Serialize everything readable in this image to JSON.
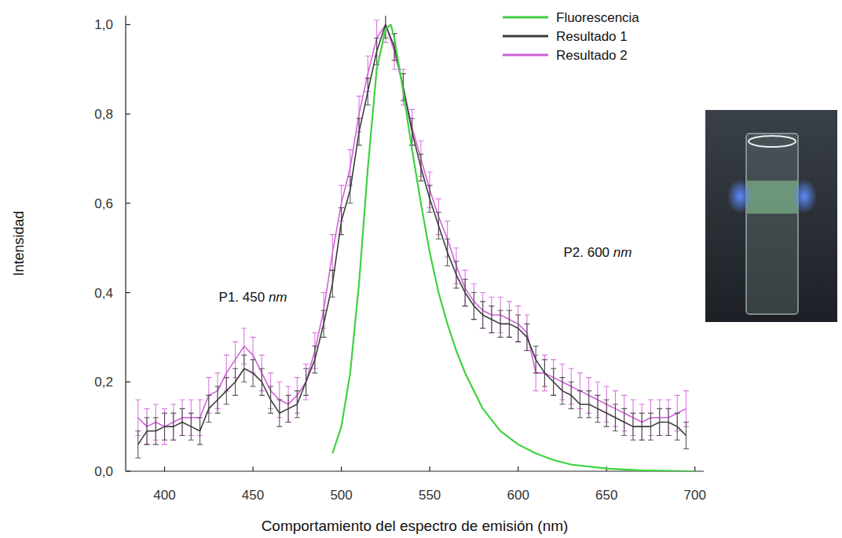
{
  "chart_data": {
    "type": "line",
    "x_label": "Comportamiento del espectro de emisión (nm)",
    "y_label": "Intensidad",
    "xlim": [
      378,
      705
    ],
    "xticks": [
      400,
      450,
      500,
      550,
      600,
      650,
      700
    ],
    "ylim": [
      0,
      1.02
    ],
    "yticks": [
      {
        "value": 0,
        "label": "0,0"
      },
      {
        "value": 0.2,
        "label": "0,2"
      },
      {
        "value": 0.4,
        "label": "0,4"
      },
      {
        "value": 0.6,
        "label": "0,6"
      },
      {
        "value": 0.8,
        "label": "0,8"
      },
      {
        "value": 1.0,
        "label": "1,0"
      }
    ],
    "grid": false,
    "legend": "top",
    "annotations": [
      {
        "text": "P1. 450 nm",
        "x": 450,
        "y": 0.38
      },
      {
        "text": "P2. 600 nm",
        "x": 645,
        "y": 0.48
      }
    ],
    "series": [
      {
        "name": "Fluorescencia",
        "color": "#3fd23f",
        "marker": "none",
        "line_style": "solid",
        "x": [
          495,
          500,
          505,
          510,
          515,
          520,
          525,
          528,
          530,
          535,
          540,
          545,
          550,
          555,
          560,
          565,
          570,
          575,
          580,
          590,
          600,
          610,
          620,
          630,
          650,
          670,
          700
        ],
        "values": [
          0.04,
          0.1,
          0.22,
          0.42,
          0.68,
          0.9,
          0.99,
          1.0,
          0.97,
          0.85,
          0.72,
          0.6,
          0.49,
          0.4,
          0.33,
          0.27,
          0.22,
          0.18,
          0.14,
          0.09,
          0.06,
          0.04,
          0.025,
          0.015,
          0.006,
          0.002,
          0.0
        ]
      },
      {
        "name": "Resultado 1",
        "color": "#3c3c3c",
        "marker": "none",
        "line_style": "solid",
        "x": [
          385,
          390,
          395,
          400,
          405,
          410,
          415,
          420,
          425,
          430,
          435,
          440,
          445,
          450,
          455,
          460,
          465,
          470,
          475,
          480,
          485,
          490,
          495,
          500,
          505,
          510,
          515,
          520,
          525,
          530,
          535,
          540,
          545,
          550,
          555,
          560,
          565,
          570,
          575,
          580,
          585,
          590,
          595,
          600,
          605,
          610,
          615,
          620,
          625,
          630,
          635,
          640,
          645,
          650,
          655,
          660,
          665,
          670,
          675,
          680,
          685,
          690,
          695
        ],
        "values": [
          0.06,
          0.09,
          0.09,
          0.1,
          0.1,
          0.11,
          0.1,
          0.09,
          0.14,
          0.16,
          0.18,
          0.2,
          0.23,
          0.22,
          0.2,
          0.16,
          0.13,
          0.14,
          0.15,
          0.2,
          0.25,
          0.33,
          0.42,
          0.56,
          0.63,
          0.76,
          0.85,
          0.94,
          1.0,
          0.95,
          0.86,
          0.76,
          0.68,
          0.61,
          0.55,
          0.49,
          0.44,
          0.4,
          0.37,
          0.35,
          0.34,
          0.33,
          0.33,
          0.32,
          0.3,
          0.25,
          0.22,
          0.2,
          0.18,
          0.17,
          0.15,
          0.15,
          0.14,
          0.13,
          0.12,
          0.11,
          0.1,
          0.1,
          0.1,
          0.11,
          0.11,
          0.1,
          0.08
        ],
        "errors": [
          0.03,
          0.03,
          0.03,
          0.03,
          0.03,
          0.03,
          0.03,
          0.03,
          0.03,
          0.03,
          0.03,
          0.03,
          0.03,
          0.03,
          0.03,
          0.03,
          0.03,
          0.03,
          0.03,
          0.03,
          0.03,
          0.03,
          0.03,
          0.03,
          0.03,
          0.03,
          0.03,
          0.03,
          0.03,
          0.03,
          0.03,
          0.03,
          0.03,
          0.03,
          0.03,
          0.03,
          0.03,
          0.03,
          0.03,
          0.03,
          0.03,
          0.03,
          0.03,
          0.03,
          0.03,
          0.03,
          0.03,
          0.03,
          0.03,
          0.03,
          0.03,
          0.03,
          0.03,
          0.03,
          0.03,
          0.03,
          0.03,
          0.03,
          0.03,
          0.03,
          0.03,
          0.03,
          0.03
        ]
      },
      {
        "name": "Resultado 2",
        "color": "#d062d8",
        "marker": "none",
        "line_style": "solid",
        "x": [
          385,
          390,
          395,
          400,
          405,
          410,
          415,
          420,
          425,
          430,
          435,
          440,
          445,
          450,
          455,
          460,
          465,
          470,
          475,
          480,
          485,
          490,
          495,
          500,
          505,
          510,
          515,
          520,
          525,
          530,
          535,
          540,
          545,
          550,
          555,
          560,
          565,
          570,
          575,
          580,
          585,
          590,
          595,
          600,
          605,
          610,
          615,
          620,
          625,
          630,
          635,
          640,
          645,
          650,
          655,
          660,
          665,
          670,
          675,
          680,
          685,
          690,
          695
        ],
        "values": [
          0.12,
          0.1,
          0.11,
          0.1,
          0.11,
          0.12,
          0.12,
          0.12,
          0.17,
          0.18,
          0.22,
          0.25,
          0.28,
          0.26,
          0.22,
          0.18,
          0.16,
          0.15,
          0.17,
          0.2,
          0.27,
          0.36,
          0.49,
          0.6,
          0.68,
          0.8,
          0.89,
          0.97,
          1.0,
          0.94,
          0.86,
          0.77,
          0.7,
          0.63,
          0.57,
          0.52,
          0.46,
          0.41,
          0.38,
          0.36,
          0.35,
          0.35,
          0.34,
          0.33,
          0.31,
          0.22,
          0.22,
          0.21,
          0.2,
          0.19,
          0.18,
          0.17,
          0.16,
          0.15,
          0.14,
          0.13,
          0.12,
          0.11,
          0.12,
          0.12,
          0.12,
          0.13,
          0.14
        ],
        "errors": [
          0.04,
          0.04,
          0.04,
          0.04,
          0.04,
          0.04,
          0.04,
          0.04,
          0.04,
          0.04,
          0.04,
          0.04,
          0.04,
          0.04,
          0.04,
          0.04,
          0.04,
          0.04,
          0.04,
          0.04,
          0.04,
          0.04,
          0.04,
          0.04,
          0.04,
          0.04,
          0.04,
          0.04,
          0.04,
          0.04,
          0.04,
          0.04,
          0.04,
          0.04,
          0.04,
          0.04,
          0.04,
          0.04,
          0.04,
          0.04,
          0.04,
          0.04,
          0.04,
          0.04,
          0.04,
          0.04,
          0.04,
          0.04,
          0.04,
          0.04,
          0.04,
          0.04,
          0.04,
          0.04,
          0.04,
          0.04,
          0.04,
          0.04,
          0.04,
          0.04,
          0.04,
          0.04,
          0.04
        ]
      }
    ]
  }
}
